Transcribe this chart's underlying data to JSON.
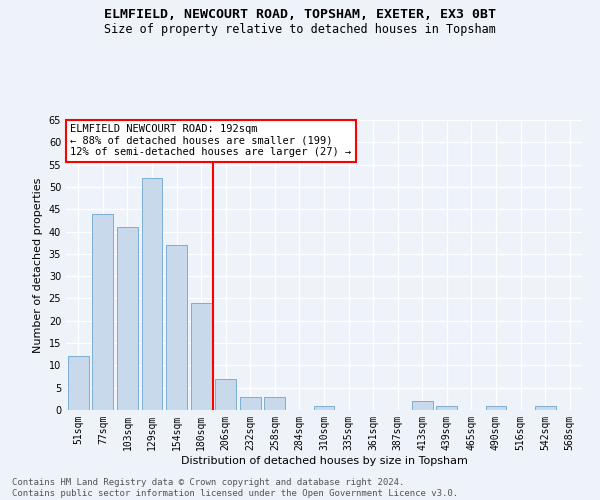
{
  "title1": "ELMFIELD, NEWCOURT ROAD, TOPSHAM, EXETER, EX3 0BT",
  "title2": "Size of property relative to detached houses in Topsham",
  "xlabel": "Distribution of detached houses by size in Topsham",
  "ylabel": "Number of detached properties",
  "categories": [
    "51sqm",
    "77sqm",
    "103sqm",
    "129sqm",
    "154sqm",
    "180sqm",
    "206sqm",
    "232sqm",
    "258sqm",
    "284sqm",
    "310sqm",
    "335sqm",
    "361sqm",
    "387sqm",
    "413sqm",
    "439sqm",
    "465sqm",
    "490sqm",
    "516sqm",
    "542sqm",
    "568sqm"
  ],
  "values": [
    12,
    44,
    41,
    52,
    37,
    24,
    7,
    3,
    3,
    0,
    1,
    0,
    0,
    0,
    2,
    1,
    0,
    1,
    0,
    1,
    0
  ],
  "bar_color": "#c9d9ec",
  "bar_edge_color": "#7aafd4",
  "vline_x": 5.5,
  "vline_color": "red",
  "annotation_text": "ELMFIELD NEWCOURT ROAD: 192sqm\n← 88% of detached houses are smaller (199)\n12% of semi-detached houses are larger (27) →",
  "annotation_box_color": "white",
  "annotation_box_edge_color": "red",
  "ylim": [
    0,
    65
  ],
  "yticks": [
    0,
    5,
    10,
    15,
    20,
    25,
    30,
    35,
    40,
    45,
    50,
    55,
    60,
    65
  ],
  "footer": "Contains HM Land Registry data © Crown copyright and database right 2024.\nContains public sector information licensed under the Open Government Licence v3.0.",
  "bg_color": "#eef2f9",
  "grid_color": "white",
  "title_fontsize": 9.5,
  "subtitle_fontsize": 8.5,
  "axis_label_fontsize": 8,
  "tick_fontsize": 7,
  "annotation_fontsize": 7.5,
  "footer_fontsize": 6.5
}
